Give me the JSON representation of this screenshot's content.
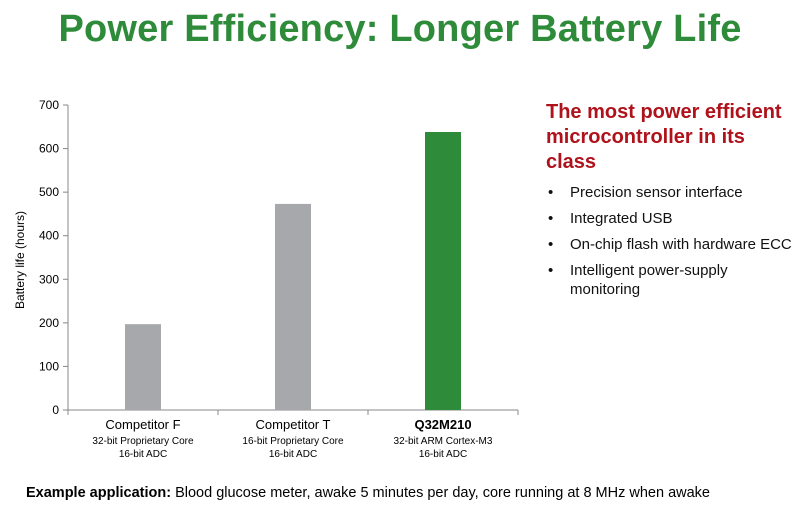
{
  "title": "Power Efficiency: Longer Battery Life",
  "chart_data": {
    "type": "bar",
    "ylabel": "Battery life (hours)",
    "xlabel": "",
    "ylim": [
      0,
      700
    ],
    "yticks": [
      0,
      100,
      200,
      300,
      400,
      500,
      600,
      700
    ],
    "grid": false,
    "categories": [
      {
        "name": "Competitor F",
        "bold": false,
        "sub": [
          "32-bit Proprietary Core",
          "16-bit ADC"
        ]
      },
      {
        "name": "Competitor T",
        "bold": false,
        "sub": [
          "16-bit Proprietary Core",
          "16-bit ADC"
        ]
      },
      {
        "name": "Q32M210",
        "bold": true,
        "sub": [
          "32-bit ARM Cortex-M3",
          "16-bit ADC"
        ]
      }
    ],
    "values": [
      197,
      473,
      638
    ],
    "colors": [
      "#a6a8ab",
      "#a6a8ab",
      "#2e8b3a"
    ]
  },
  "panel": {
    "heading": "The most power efficient microcontroller in its class",
    "bullets": [
      "Precision sensor interface",
      "Integrated USB",
      "On-chip flash with hardware ECC",
      "Intelligent power-supply monitoring"
    ]
  },
  "footer": {
    "label": "Example application:",
    "text": "Blood glucose meter, awake 5 minutes per day, core running at 8 MHz when awake"
  }
}
